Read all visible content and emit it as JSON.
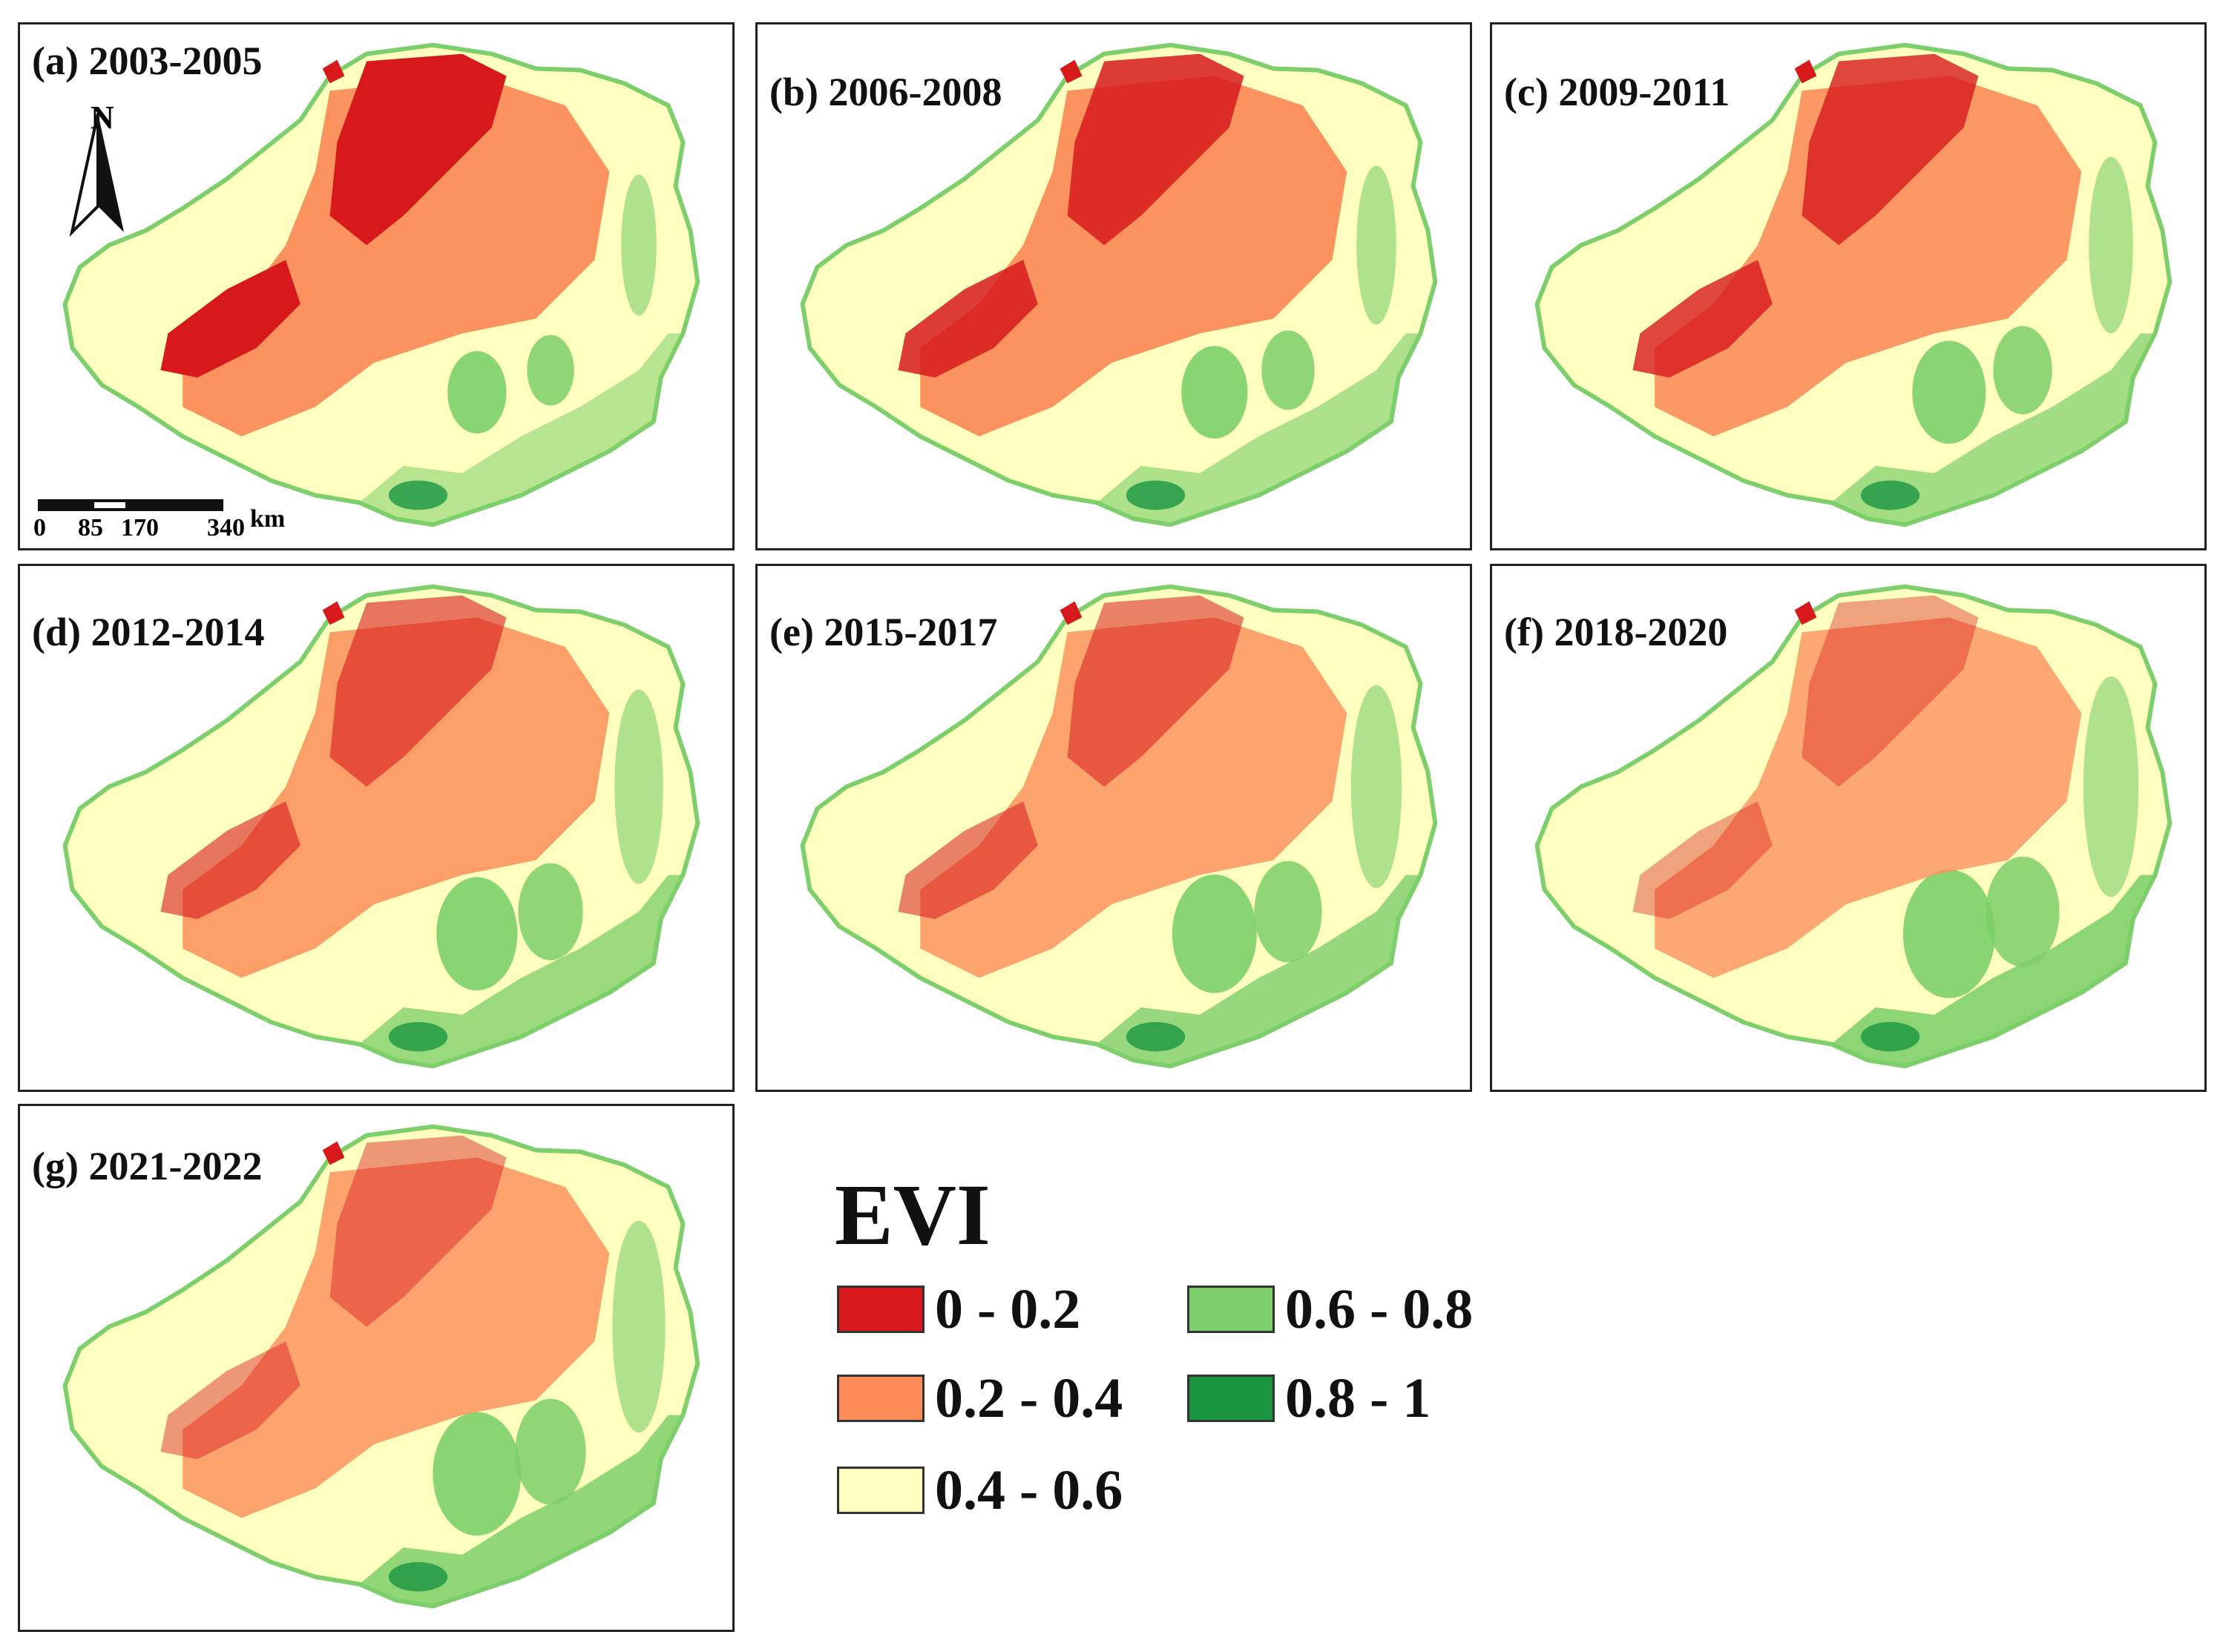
{
  "panels": [
    {
      "label": "(a) 2003-2005",
      "red": 1.0,
      "orange": 1.0,
      "green": 0.8
    },
    {
      "label": "(b) 2006-2008",
      "red": 0.85,
      "orange": 1.0,
      "green": 0.9
    },
    {
      "label": "(c) 2009-2011",
      "red": 0.8,
      "orange": 0.95,
      "green": 1.0
    },
    {
      "label": "(d) 2012-2014",
      "red": 0.6,
      "orange": 0.9,
      "green": 1.1
    },
    {
      "label": "(e) 2015-2017",
      "red": 0.55,
      "orange": 0.85,
      "green": 1.15
    },
    {
      "label": "(f) 2018-2020",
      "red": 0.4,
      "orange": 0.8,
      "green": 1.25
    },
    {
      "label": "(g) 2021-2022",
      "red": 0.45,
      "orange": 0.85,
      "green": 1.2
    }
  ],
  "north_arrow": {
    "letter": "N"
  },
  "scale_bar": {
    "ticks": [
      "0",
      "85",
      "170",
      "340"
    ],
    "unit": "km"
  },
  "legend": {
    "title": "EVI",
    "classes": [
      {
        "label": "0 - 0.2",
        "color": "#d7191c"
      },
      {
        "label": "0.2 - 0.4",
        "color": "#fc8d59"
      },
      {
        "label": "0.4 - 0.6",
        "color": "#ffffbf"
      },
      {
        "label": "0.6 - 0.8",
        "color": "#7ccf6a"
      },
      {
        "label": "0.8 - 1",
        "color": "#1a9641"
      }
    ]
  },
  "colors": {
    "red": "#d7191c",
    "orange": "#fc8d59",
    "yellow": "#ffffbf",
    "green": "#7ccf6a",
    "darkgreen": "#1a9641"
  }
}
